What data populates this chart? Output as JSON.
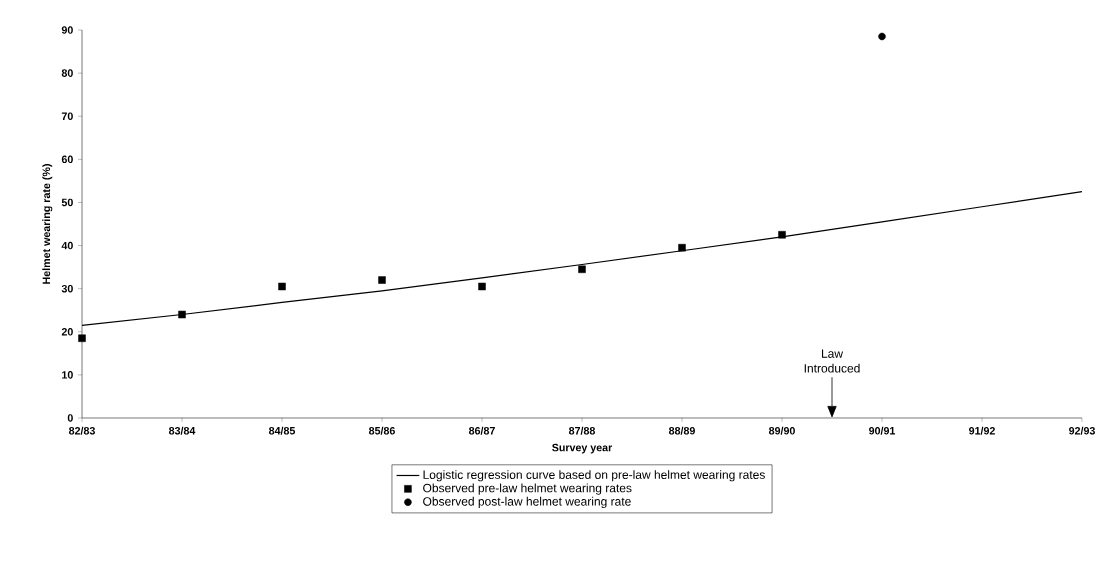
{
  "chart_data": {
    "type": "scatter",
    "xlabel": "Survey year",
    "ylabel": "Helmet wearing rate (%)",
    "categories": [
      "82/83",
      "83/84",
      "84/85",
      "85/86",
      "86/87",
      "87/88",
      "88/89",
      "89/90",
      "90/91",
      "91/92",
      "92/93"
    ],
    "ylim": [
      0,
      90
    ],
    "yticks": [
      0,
      10,
      20,
      30,
      40,
      50,
      60,
      70,
      80,
      90
    ],
    "series": [
      {
        "name": "Logistic regression curve based on pre-law helmet wearing rates",
        "type": "line",
        "marker": "none",
        "color": "#000000",
        "values": [
          21.5,
          24,
          26.8,
          29.5,
          32.5,
          35.6,
          38.8,
          42,
          45.5,
          49,
          52.5
        ]
      },
      {
        "name": "Observed pre-law helmet wearing rates",
        "marker": "square",
        "color": "#000000",
        "values": [
          18.5,
          24,
          30.5,
          32,
          30.5,
          34.5,
          39.5,
          42.5,
          null,
          null,
          null
        ]
      },
      {
        "name": "Observed post-law helmet wearing rate",
        "marker": "circle",
        "color": "#000000",
        "values": [
          null,
          null,
          null,
          null,
          null,
          null,
          null,
          null,
          88.5,
          null,
          null
        ]
      }
    ],
    "annotations": [
      "Law Introduced"
    ],
    "legend": "bottom",
    "grid": false
  }
}
